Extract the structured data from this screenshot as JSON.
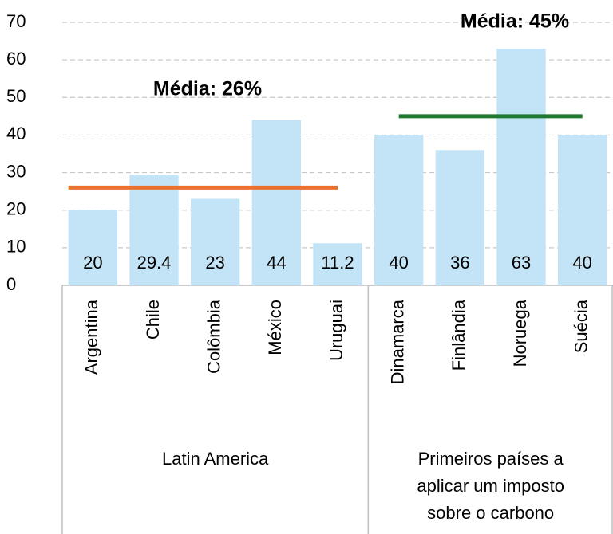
{
  "chart_data": {
    "type": "bar",
    "color": "#c3e4f6",
    "ylim": [
      0,
      70
    ],
    "yticks": [
      0,
      10,
      20,
      30,
      40,
      50,
      60,
      70
    ],
    "grid": true,
    "groups": [
      {
        "name": [
          "Latin America"
        ],
        "categories": [
          "Argentina",
          "Chile",
          "Colômbia",
          "México",
          "Uruguai"
        ],
        "values": [
          20,
          29.4,
          23,
          44,
          11.2
        ],
        "average": {
          "label": "Média: 26%",
          "value": 26,
          "color": "#e97132"
        }
      },
      {
        "name": [
          "Primeiros países a",
          "aplicar um imposto",
          "sobre o carbono"
        ],
        "categories": [
          "Dinamarca",
          "Finlândia",
          "Noruega",
          "Suécia"
        ],
        "values": [
          40,
          36,
          63,
          40
        ],
        "average": {
          "label": "Média: 45%",
          "value": 45,
          "color": "#1e7a2e"
        }
      }
    ]
  }
}
